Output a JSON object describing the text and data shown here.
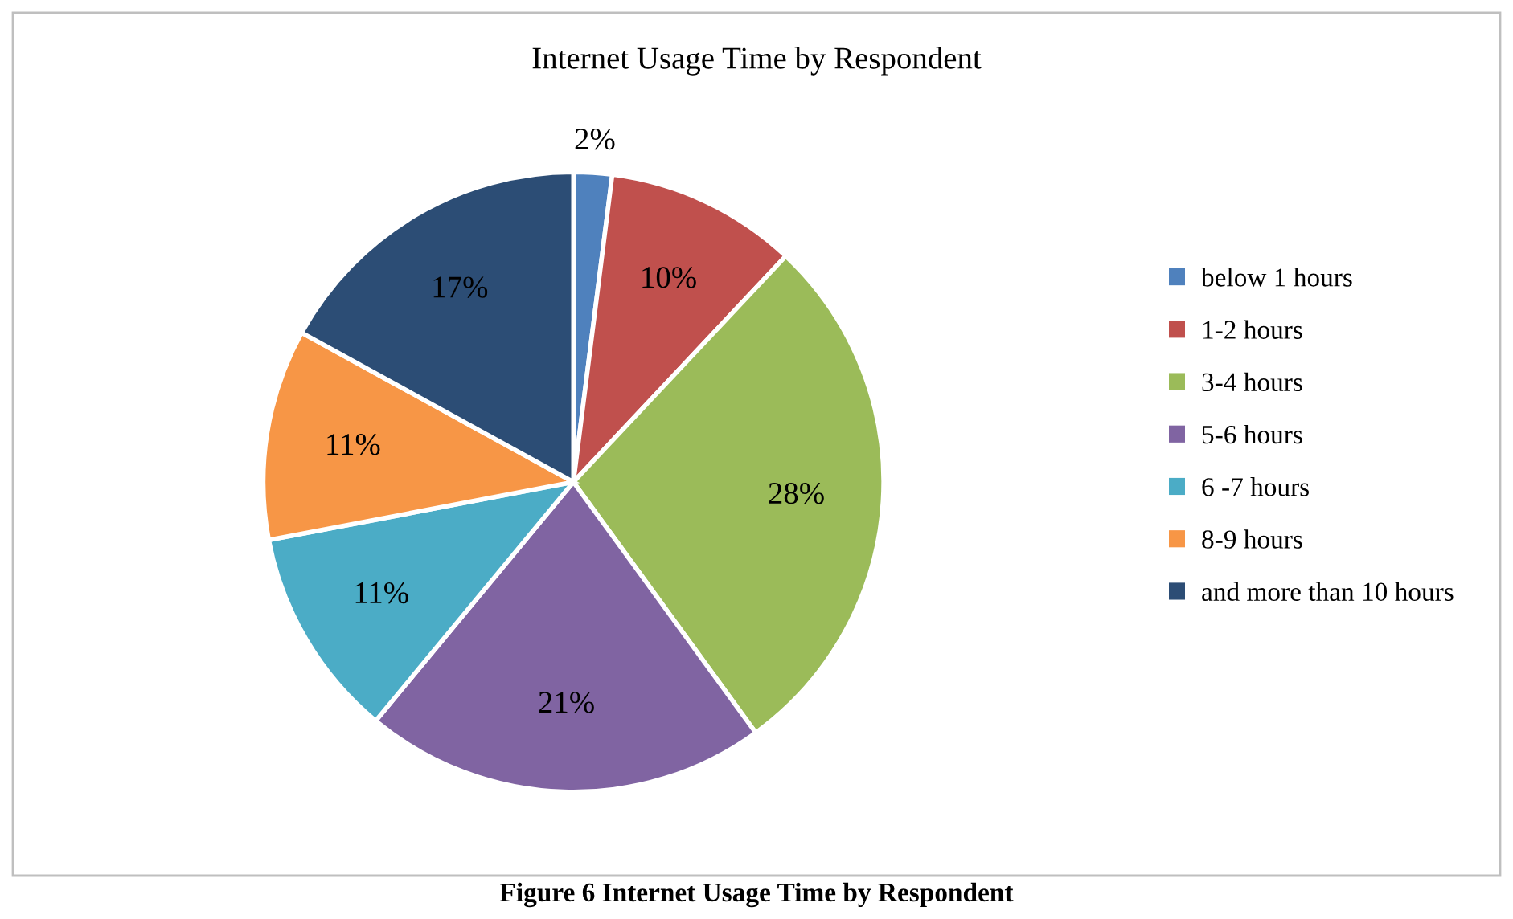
{
  "chart_data": {
    "type": "pie",
    "title": "Internet Usage Time by Respondent",
    "categories": [
      "below 1 hours",
      "1-2 hours",
      "3-4 hours",
      "5-6 hours",
      "6 -7 hours",
      "8-9 hours",
      "and more than 10 hours"
    ],
    "values": [
      2,
      10,
      28,
      21,
      11,
      11,
      17
    ],
    "colors": [
      "#4f81bd",
      "#c0504d",
      "#9bbb59",
      "#8064a2",
      "#4bacc6",
      "#f79646",
      "#2c4d75"
    ],
    "value_labels": [
      "2%",
      "10%",
      "28%",
      "21%",
      "11%",
      "11%",
      "17%"
    ],
    "legend": "right",
    "annotations": [
      "Figure 6 Internet Usage Time by Respondent"
    ]
  }
}
